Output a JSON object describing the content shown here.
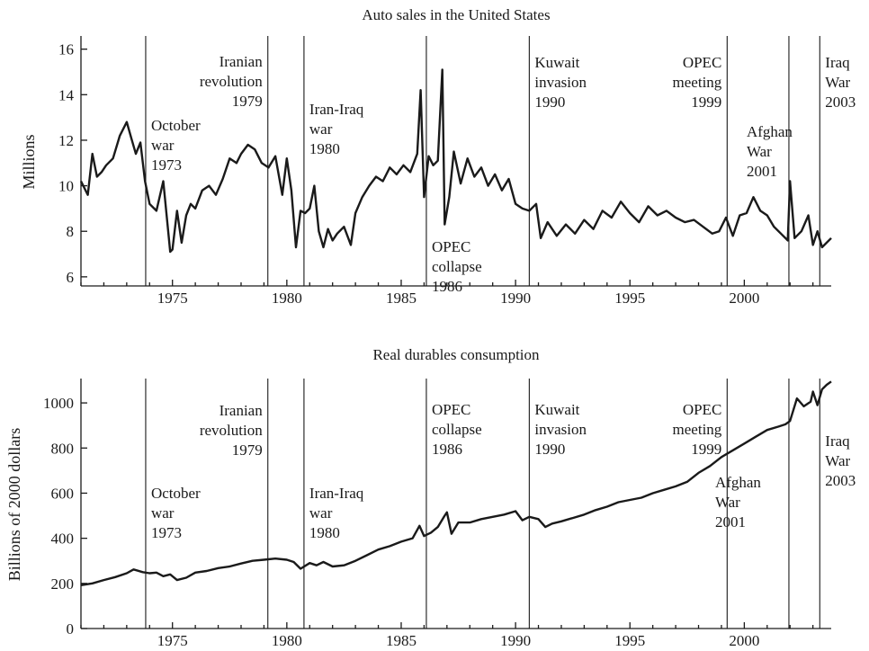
{
  "chart_data": [
    {
      "type": "line",
      "title": "Auto sales in the United States",
      "xlabel": "",
      "ylabel": "Millions",
      "xlim": [
        1971.0,
        2003.8
      ],
      "ylim": [
        5.6,
        16.5
      ],
      "xticks": [
        1975,
        1980,
        1985,
        1990,
        1995,
        2000
      ],
      "xtick_labels": [
        "1975",
        "1980",
        "1985",
        "1990",
        "1995",
        "2000"
      ],
      "yticks": [
        6,
        8,
        10,
        12,
        14,
        16
      ],
      "ytick_labels": [
        "6",
        "8",
        "10",
        "12",
        "14",
        "16"
      ],
      "grid": false,
      "series": [
        {
          "x": [
            1971.0,
            1971.3,
            1971.5,
            1971.7,
            1971.9,
            1972.1,
            1972.4,
            1972.7,
            1973.0,
            1973.2,
            1973.4,
            1973.6,
            1973.8,
            1974.0,
            1974.3,
            1974.6,
            1974.9,
            1975.0,
            1975.2,
            1975.4,
            1975.6,
            1975.8,
            1976.0,
            1976.3,
            1976.6,
            1976.9,
            1977.2,
            1977.5,
            1977.8,
            1978.0,
            1978.3,
            1978.6,
            1978.9,
            1979.2,
            1979.5,
            1979.8,
            1980.0,
            1980.2,
            1980.4,
            1980.6,
            1980.8,
            1981.0,
            1981.2,
            1981.4,
            1981.6,
            1981.8,
            1982.0,
            1982.2,
            1982.5,
            1982.8,
            1983.0,
            1983.3,
            1983.6,
            1983.9,
            1984.2,
            1984.5,
            1984.8,
            1985.1,
            1985.4,
            1985.7,
            1985.85,
            1986.0,
            1986.2,
            1986.4,
            1986.6,
            1986.8,
            1986.9,
            1987.1,
            1987.3,
            1987.6,
            1987.9,
            1988.2,
            1988.5,
            1988.8,
            1989.1,
            1989.4,
            1989.7,
            1990.0,
            1990.3,
            1990.6,
            1990.9,
            1991.1,
            1991.4,
            1991.8,
            1992.2,
            1992.6,
            1993.0,
            1993.4,
            1993.8,
            1994.2,
            1994.6,
            1995.0,
            1995.4,
            1995.8,
            1996.2,
            1996.6,
            1997.0,
            1997.4,
            1997.8,
            1998.2,
            1998.6,
            1998.9,
            1999.2,
            1999.5,
            1999.8,
            2000.1,
            2000.4,
            2000.7,
            2001.0,
            2001.3,
            2001.6,
            2001.9,
            2002.0,
            2002.2,
            2002.5,
            2002.8,
            2003.0,
            2003.2,
            2003.4,
            2003.6,
            2003.8
          ],
          "y": [
            10.2,
            9.6,
            11.4,
            10.4,
            10.6,
            10.9,
            11.2,
            12.2,
            12.8,
            12.1,
            11.4,
            11.9,
            10.2,
            9.2,
            8.9,
            10.2,
            7.1,
            7.2,
            8.9,
            7.5,
            8.7,
            9.2,
            9.0,
            9.8,
            10.0,
            9.6,
            10.3,
            11.2,
            11.0,
            11.4,
            11.8,
            11.6,
            11.0,
            10.8,
            11.3,
            9.6,
            11.2,
            9.8,
            7.3,
            8.9,
            8.8,
            9.0,
            10.0,
            8.0,
            7.3,
            8.1,
            7.6,
            7.9,
            8.2,
            7.4,
            8.8,
            9.5,
            10.0,
            10.4,
            10.2,
            10.8,
            10.5,
            10.9,
            10.6,
            11.4,
            14.2,
            9.5,
            11.3,
            10.9,
            11.1,
            15.1,
            8.3,
            9.5,
            11.5,
            10.1,
            11.2,
            10.4,
            10.8,
            10.0,
            10.5,
            9.8,
            10.3,
            9.2,
            9.0,
            8.9,
            9.2,
            7.7,
            8.4,
            7.8,
            8.3,
            7.9,
            8.5,
            8.1,
            8.9,
            8.6,
            9.3,
            8.8,
            8.4,
            9.1,
            8.7,
            8.9,
            8.6,
            8.4,
            8.5,
            8.2,
            7.9,
            8.0,
            8.6,
            7.8,
            8.7,
            8.8,
            9.5,
            8.9,
            8.7,
            8.2,
            7.9,
            7.6,
            10.2,
            7.7,
            8.0,
            8.7,
            7.4,
            8.0,
            7.3,
            7.5,
            7.7
          ]
        }
      ],
      "events": [
        {
          "x": 1973.83,
          "lines": [
            "October",
            "war",
            "1973"
          ]
        },
        {
          "x": 1979.17,
          "lines": [
            "Iranian",
            "revolution",
            "1979"
          ]
        },
        {
          "x": 1980.75,
          "lines": [
            "Iran-Iraq",
            "war",
            "1980"
          ]
        },
        {
          "x": 1986.1,
          "lines": [
            "OPEC",
            "collapse",
            "1986"
          ]
        },
        {
          "x": 1990.6,
          "lines": [
            "Kuwait",
            "invasion",
            "1990"
          ]
        },
        {
          "x": 1999.25,
          "lines": [
            "OPEC",
            "meeting",
            "1999"
          ]
        },
        {
          "x": 2001.95,
          "lines": [
            "Afghan",
            "War",
            "2001"
          ]
        },
        {
          "x": 2003.3,
          "lines": [
            "Iraq",
            "War",
            "2003"
          ]
        }
      ]
    },
    {
      "type": "line",
      "title": "Real durables consumption",
      "xlabel": "",
      "ylabel": "Billions of 2000 dollars",
      "xlim": [
        1971.0,
        2003.8
      ],
      "ylim": [
        0,
        1100
      ],
      "xticks": [
        1975,
        1980,
        1985,
        1990,
        1995,
        2000
      ],
      "xtick_labels": [
        "1975",
        "1980",
        "1985",
        "1990",
        "1995",
        "2000"
      ],
      "yticks": [
        0,
        200,
        400,
        600,
        800,
        1000
      ],
      "ytick_labels": [
        "0",
        "200",
        "400",
        "600",
        "800",
        "1000"
      ],
      "grid": false,
      "series": [
        {
          "x": [
            1971.0,
            1971.5,
            1972.0,
            1972.5,
            1973.0,
            1973.3,
            1973.7,
            1974.0,
            1974.3,
            1974.6,
            1974.9,
            1975.2,
            1975.6,
            1976.0,
            1976.5,
            1977.0,
            1977.5,
            1978.0,
            1978.5,
            1979.0,
            1979.5,
            1980.0,
            1980.3,
            1980.6,
            1981.0,
            1981.3,
            1981.6,
            1982.0,
            1982.5,
            1983.0,
            1983.5,
            1984.0,
            1984.5,
            1985.0,
            1985.5,
            1985.8,
            1986.0,
            1986.3,
            1986.6,
            1986.9,
            1987.0,
            1987.2,
            1987.5,
            1988.0,
            1988.5,
            1989.0,
            1989.5,
            1990.0,
            1990.3,
            1990.6,
            1991.0,
            1991.3,
            1991.6,
            1992.0,
            1992.5,
            1993.0,
            1993.5,
            1994.0,
            1994.5,
            1995.0,
            1995.5,
            1996.0,
            1996.5,
            1997.0,
            1997.5,
            1998.0,
            1998.5,
            1999.0,
            1999.5,
            2000.0,
            2000.5,
            2001.0,
            2001.5,
            2001.8,
            2002.0,
            2002.3,
            2002.6,
            2002.9,
            2003.0,
            2003.2,
            2003.4,
            2003.6,
            2003.8
          ],
          "y": [
            192,
            200,
            215,
            228,
            245,
            262,
            250,
            245,
            248,
            232,
            240,
            215,
            225,
            248,
            255,
            268,
            275,
            288,
            300,
            305,
            310,
            305,
            295,
            265,
            290,
            280,
            295,
            275,
            280,
            300,
            325,
            350,
            365,
            385,
            400,
            455,
            410,
            425,
            450,
            500,
            515,
            420,
            470,
            470,
            485,
            495,
            505,
            520,
            480,
            495,
            485,
            450,
            465,
            475,
            490,
            505,
            525,
            540,
            560,
            570,
            580,
            600,
            615,
            630,
            650,
            690,
            720,
            760,
            790,
            820,
            850,
            880,
            895,
            905,
            920,
            1020,
            985,
            1005,
            1050,
            990,
            1060,
            1080,
            1095
          ]
        }
      ],
      "events": [
        {
          "x": 1973.83,
          "lines": [
            "October",
            "war",
            "1973"
          ]
        },
        {
          "x": 1979.17,
          "lines": [
            "Iranian",
            "revolution",
            "1979"
          ]
        },
        {
          "x": 1980.75,
          "lines": [
            "Iran-Iraq",
            "war",
            "1980"
          ]
        },
        {
          "x": 1986.1,
          "lines": [
            "OPEC",
            "collapse",
            "1986"
          ]
        },
        {
          "x": 1990.6,
          "lines": [
            "Kuwait",
            "invasion",
            "1990"
          ]
        },
        {
          "x": 1999.25,
          "lines": [
            "OPEC",
            "meeting",
            "1999"
          ]
        },
        {
          "x": 2001.95,
          "lines": [
            "Afghan",
            "War",
            "2001"
          ]
        },
        {
          "x": 2003.3,
          "lines": [
            "Iraq",
            "War",
            "2003"
          ]
        }
      ]
    }
  ]
}
